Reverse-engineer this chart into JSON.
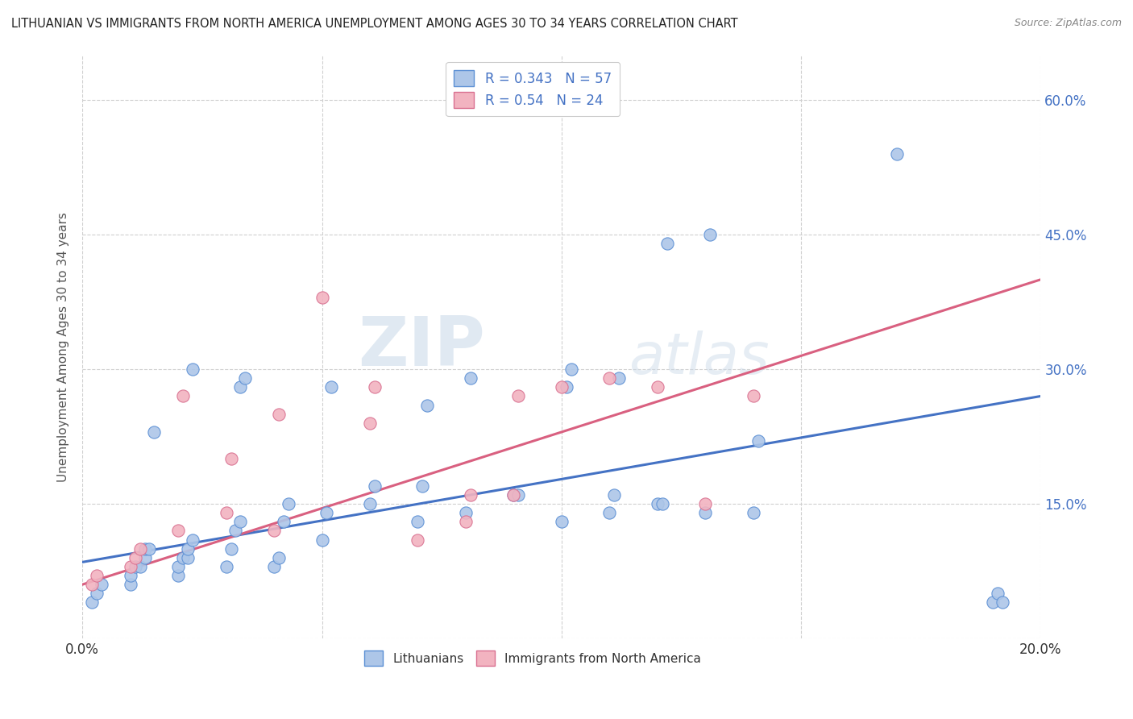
{
  "title": "LITHUANIAN VS IMMIGRANTS FROM NORTH AMERICA UNEMPLOYMENT AMONG AGES 30 TO 34 YEARS CORRELATION CHART",
  "source": "Source: ZipAtlas.com",
  "ylabel": "Unemployment Among Ages 30 to 34 years",
  "xlim": [
    0.0,
    0.2
  ],
  "ylim": [
    0.0,
    0.65
  ],
  "xticks": [
    0.0,
    0.05,
    0.1,
    0.15,
    0.2
  ],
  "xticklabels": [
    "0.0%",
    "",
    "",
    "",
    "20.0%"
  ],
  "yticks": [
    0.0,
    0.15,
    0.3,
    0.45,
    0.6
  ],
  "yticklabels_right": [
    "",
    "15.0%",
    "30.0%",
    "45.0%",
    "60.0%"
  ],
  "blue_R": 0.343,
  "blue_N": 57,
  "pink_R": 0.54,
  "pink_N": 24,
  "blue_color": "#adc6e8",
  "pink_color": "#f2b3c0",
  "blue_edge_color": "#5b8fd4",
  "pink_edge_color": "#d97090",
  "blue_line_color": "#4472c4",
  "pink_line_color": "#d96080",
  "legend_label_blue": "Lithuanians",
  "legend_label_pink": "Immigrants from North America",
  "blue_scatter_x": [
    0.002,
    0.003,
    0.004,
    0.01,
    0.01,
    0.011,
    0.012,
    0.013,
    0.013,
    0.014,
    0.015,
    0.02,
    0.02,
    0.021,
    0.022,
    0.022,
    0.023,
    0.023,
    0.03,
    0.031,
    0.032,
    0.033,
    0.033,
    0.034,
    0.04,
    0.041,
    0.042,
    0.043,
    0.05,
    0.051,
    0.052,
    0.06,
    0.061,
    0.07,
    0.071,
    0.072,
    0.08,
    0.081,
    0.09,
    0.091,
    0.1,
    0.101,
    0.102,
    0.11,
    0.111,
    0.112,
    0.12,
    0.121,
    0.122,
    0.13,
    0.131,
    0.14,
    0.141,
    0.17,
    0.19,
    0.191,
    0.192
  ],
  "blue_scatter_y": [
    0.04,
    0.05,
    0.06,
    0.06,
    0.07,
    0.08,
    0.08,
    0.09,
    0.1,
    0.1,
    0.23,
    0.07,
    0.08,
    0.09,
    0.09,
    0.1,
    0.11,
    0.3,
    0.08,
    0.1,
    0.12,
    0.13,
    0.28,
    0.29,
    0.08,
    0.09,
    0.13,
    0.15,
    0.11,
    0.14,
    0.28,
    0.15,
    0.17,
    0.13,
    0.17,
    0.26,
    0.14,
    0.29,
    0.16,
    0.16,
    0.13,
    0.28,
    0.3,
    0.14,
    0.16,
    0.29,
    0.15,
    0.15,
    0.44,
    0.14,
    0.45,
    0.14,
    0.22,
    0.54,
    0.04,
    0.05,
    0.04
  ],
  "pink_scatter_x": [
    0.002,
    0.003,
    0.01,
    0.011,
    0.012,
    0.02,
    0.021,
    0.03,
    0.031,
    0.04,
    0.041,
    0.05,
    0.06,
    0.061,
    0.07,
    0.08,
    0.081,
    0.09,
    0.091,
    0.1,
    0.11,
    0.12,
    0.13,
    0.14
  ],
  "pink_scatter_y": [
    0.06,
    0.07,
    0.08,
    0.09,
    0.1,
    0.12,
    0.27,
    0.14,
    0.2,
    0.12,
    0.25,
    0.38,
    0.24,
    0.28,
    0.11,
    0.13,
    0.16,
    0.16,
    0.27,
    0.28,
    0.29,
    0.28,
    0.15,
    0.27
  ],
  "blue_trend_x": [
    0.0,
    0.2
  ],
  "blue_trend_y": [
    0.085,
    0.27
  ],
  "pink_trend_x": [
    0.0,
    0.2
  ],
  "pink_trend_y": [
    0.06,
    0.4
  ],
  "grid_color": "#d0d0d0",
  "bg_color": "#ffffff",
  "watermark_zip": "ZIP",
  "watermark_atlas": "atlas"
}
